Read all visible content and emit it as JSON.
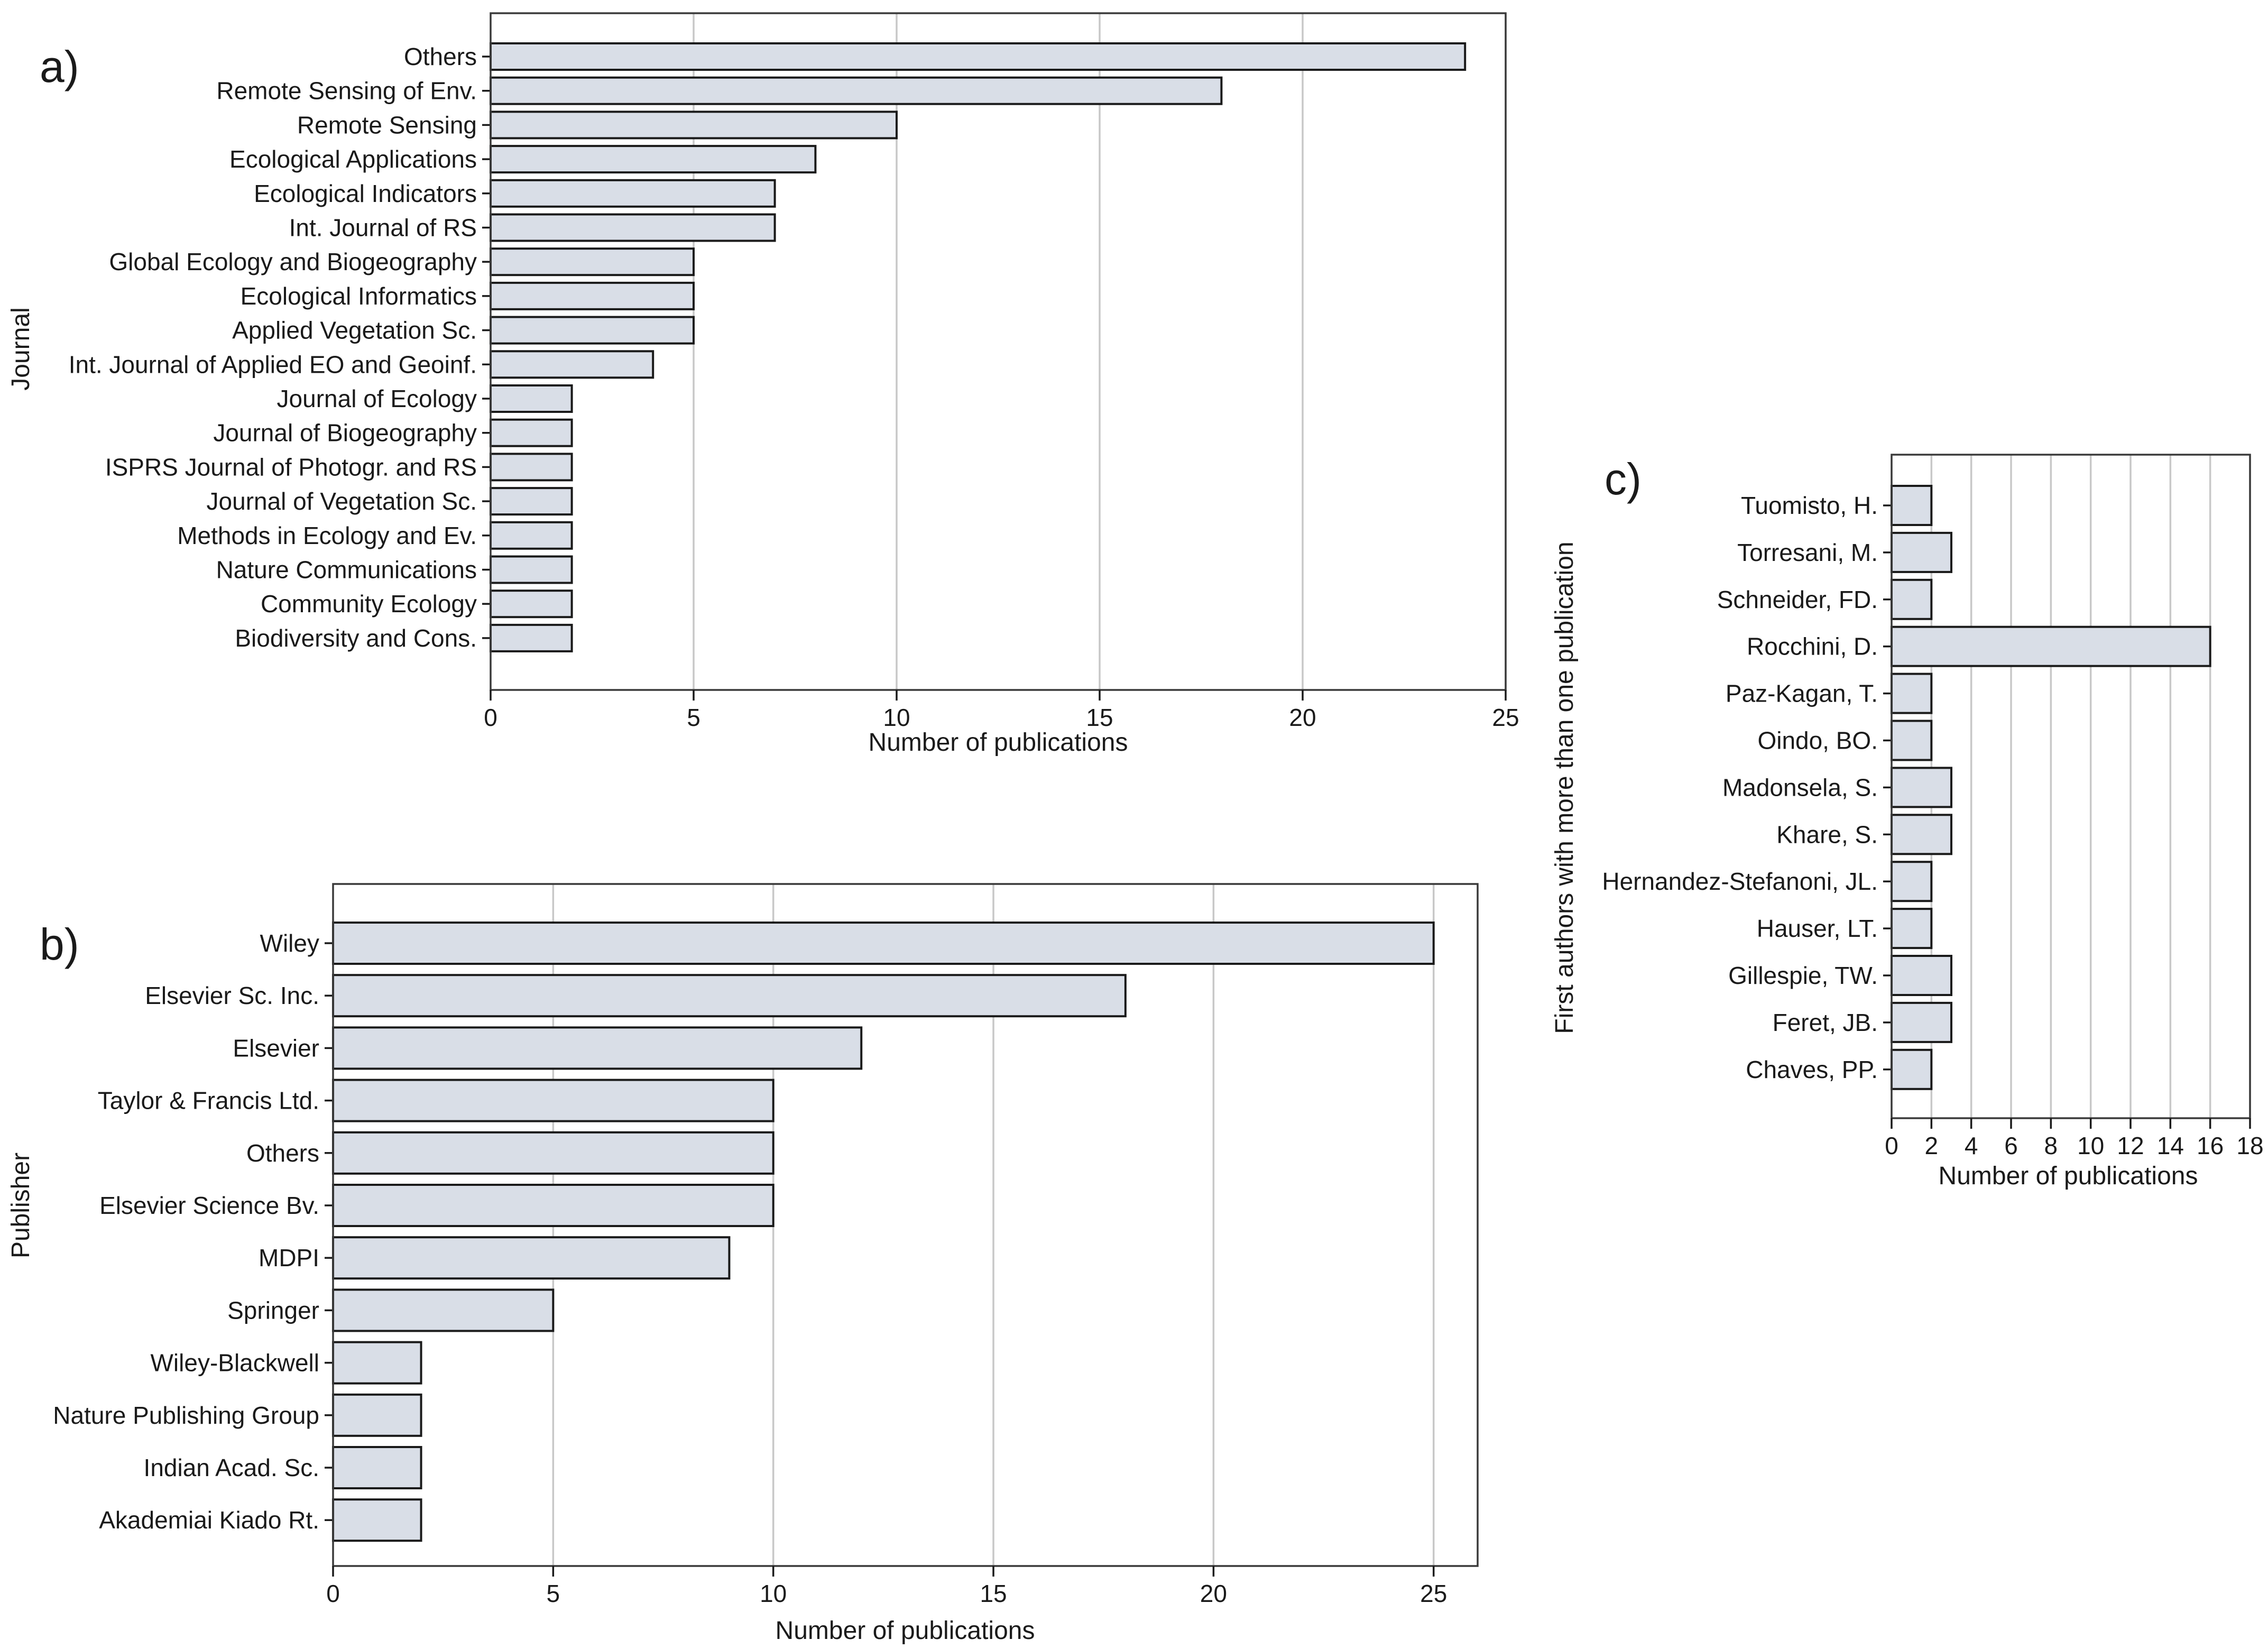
{
  "chart_data": [
    {
      "type": "bar",
      "orientation": "horizontal",
      "panel_label": "a)",
      "categories": [
        "Others",
        "Remote Sensing of Env.",
        "Remote Sensing",
        "Ecological Applications",
        "Ecological Indicators",
        "Int. Journal of RS",
        "Global Ecology and Biogeography",
        "Ecological Informatics",
        "Applied Vegetation Sc.",
        "Int. Journal of Applied EO and Geoinf.",
        "Journal of Ecology",
        "Journal of Biogeography",
        "ISPRS Journal of Photogr. and RS",
        "Journal of Vegetation Sc.",
        "Methods in Ecology and Ev.",
        "Nature Communications",
        "Community Ecology",
        "Biodiversity and Cons."
      ],
      "values": [
        24,
        18,
        10,
        8,
        7,
        7,
        5,
        5,
        5,
        4,
        2,
        2,
        2,
        2,
        2,
        2,
        2,
        2
      ],
      "xlabel": "Number of publications",
      "ylabel": "Journal",
      "xlim": [
        0,
        25
      ],
      "xticks": [
        "0",
        "5",
        "10",
        "15",
        "20",
        "25"
      ],
      "grid": "vertical"
    },
    {
      "type": "bar",
      "orientation": "horizontal",
      "panel_label": "b)",
      "categories": [
        "Wiley",
        "Elsevier Sc. Inc.",
        "Elsevier",
        "Taylor & Francis Ltd.",
        "Others",
        "Elsevier Science Bv.",
        "MDPI",
        "Springer",
        "Wiley-Blackwell",
        "Nature Publishing Group",
        "Indian Acad. Sc.",
        "Akademiai Kiado Rt."
      ],
      "values": [
        25,
        18,
        12,
        10,
        10,
        10,
        9,
        5,
        2,
        2,
        2,
        2
      ],
      "xlabel": "Number of publications",
      "ylabel": "Publisher",
      "xlim": [
        0,
        26
      ],
      "xticks": [
        "0",
        "5",
        "10",
        "15",
        "20",
        "25"
      ],
      "grid": "vertical"
    },
    {
      "type": "bar",
      "orientation": "horizontal",
      "panel_label": "c)",
      "categories": [
        "Tuomisto, H.",
        "Torresani, M.",
        "Schneider, FD.",
        "Rocchini, D.",
        "Paz-Kagan, T.",
        "Oindo, BO.",
        "Madonsela, S.",
        "Khare, S.",
        "Hernandez-Stefanoni, JL.",
        "Hauser, LT.",
        "Gillespie, TW.",
        "Feret, JB.",
        "Chaves, PP."
      ],
      "values": [
        2,
        3,
        2,
        16,
        2,
        2,
        3,
        3,
        2,
        2,
        3,
        3,
        2
      ],
      "xlabel": "Number of publications",
      "ylabel": "First authors with more than one publication",
      "xlim": [
        0,
        18
      ],
      "xticks": [
        "0",
        "2",
        "4",
        "6",
        "8",
        "10",
        "12",
        "14",
        "16",
        "18"
      ],
      "grid": "vertical"
    }
  ]
}
